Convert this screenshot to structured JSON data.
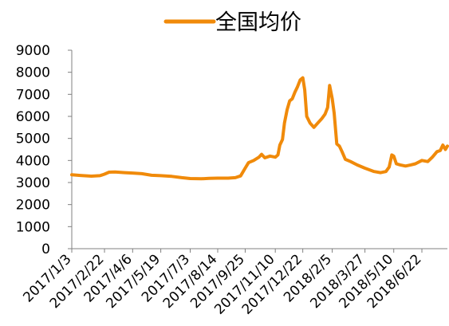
{
  "chart_data": {
    "type": "line",
    "title": "",
    "xlabel": "",
    "ylabel": "",
    "legend": {
      "position": "top-center"
    },
    "grid": false,
    "ylim": [
      0,
      9000
    ],
    "yticks": [
      0,
      1000,
      2000,
      3000,
      4000,
      5000,
      6000,
      7000,
      8000,
      9000
    ],
    "xlim": [
      "2017-01-03",
      "2018-07-31"
    ],
    "xticks": [
      "2017/1/3",
      "2017/2/22",
      "2017/4/6",
      "2017/5/19",
      "2017/7/3",
      "2017/8/14",
      "2017/9/25",
      "2017/11/10",
      "2017/12/22",
      "2018/2/5",
      "2018/3/27",
      "2018/5/10",
      "2018/6/22"
    ],
    "series": [
      {
        "name": "全国均价",
        "color": "#F08A0A",
        "points": [
          [
            "2017-01-03",
            3350
          ],
          [
            "2017-01-16",
            3320
          ],
          [
            "2017-02-02",
            3290
          ],
          [
            "2017-02-15",
            3310
          ],
          [
            "2017-02-22",
            3380
          ],
          [
            "2017-03-01",
            3470
          ],
          [
            "2017-03-10",
            3480
          ],
          [
            "2017-03-25",
            3450
          ],
          [
            "2017-04-06",
            3430
          ],
          [
            "2017-04-20",
            3400
          ],
          [
            "2017-05-05",
            3330
          ],
          [
            "2017-05-19",
            3310
          ],
          [
            "2017-06-05",
            3280
          ],
          [
            "2017-06-20",
            3220
          ],
          [
            "2017-07-03",
            3180
          ],
          [
            "2017-07-20",
            3170
          ],
          [
            "2017-08-01",
            3190
          ],
          [
            "2017-08-14",
            3200
          ],
          [
            "2017-08-30",
            3200
          ],
          [
            "2017-09-10",
            3220
          ],
          [
            "2017-09-18",
            3300
          ],
          [
            "2017-09-25",
            3650
          ],
          [
            "2017-09-30",
            3900
          ],
          [
            "2017-10-08",
            4000
          ],
          [
            "2017-10-16",
            4150
          ],
          [
            "2017-10-20",
            4280
          ],
          [
            "2017-10-25",
            4120
          ],
          [
            "2017-11-02",
            4200
          ],
          [
            "2017-11-10",
            4150
          ],
          [
            "2017-11-14",
            4250
          ],
          [
            "2017-11-17",
            4700
          ],
          [
            "2017-11-21",
            4950
          ],
          [
            "2017-11-24",
            5700
          ],
          [
            "2017-11-28",
            6300
          ],
          [
            "2017-12-02",
            6700
          ],
          [
            "2017-12-06",
            6800
          ],
          [
            "2017-12-10",
            7100
          ],
          [
            "2017-12-14",
            7350
          ],
          [
            "2017-12-18",
            7650
          ],
          [
            "2017-12-22",
            7750
          ],
          [
            "2017-12-25",
            7200
          ],
          [
            "2017-12-28",
            6000
          ],
          [
            "2018-01-02",
            5700
          ],
          [
            "2018-01-08",
            5500
          ],
          [
            "2018-01-14",
            5700
          ],
          [
            "2018-01-20",
            5900
          ],
          [
            "2018-01-25",
            6100
          ],
          [
            "2018-01-29",
            6400
          ],
          [
            "2018-02-01",
            7400
          ],
          [
            "2018-02-05",
            6800
          ],
          [
            "2018-02-08",
            6150
          ],
          [
            "2018-02-12",
            4750
          ],
          [
            "2018-02-16",
            4650
          ],
          [
            "2018-02-20",
            4400
          ],
          [
            "2018-02-25",
            4050
          ],
          [
            "2018-03-05",
            3950
          ],
          [
            "2018-03-15",
            3800
          ],
          [
            "2018-03-27",
            3650
          ],
          [
            "2018-04-10",
            3500
          ],
          [
            "2018-04-20",
            3450
          ],
          [
            "2018-04-28",
            3500
          ],
          [
            "2018-05-03",
            3700
          ],
          [
            "2018-05-07",
            4250
          ],
          [
            "2018-05-10",
            4200
          ],
          [
            "2018-05-14",
            3850
          ],
          [
            "2018-05-20",
            3800
          ],
          [
            "2018-05-28",
            3750
          ],
          [
            "2018-06-05",
            3800
          ],
          [
            "2018-06-12",
            3850
          ],
          [
            "2018-06-22",
            4000
          ],
          [
            "2018-07-01",
            3950
          ],
          [
            "2018-07-08",
            4150
          ],
          [
            "2018-07-15",
            4400
          ],
          [
            "2018-07-20",
            4450
          ],
          [
            "2018-07-24",
            4700
          ],
          [
            "2018-07-28",
            4500
          ],
          [
            "2018-07-31",
            4650
          ]
        ]
      }
    ]
  }
}
